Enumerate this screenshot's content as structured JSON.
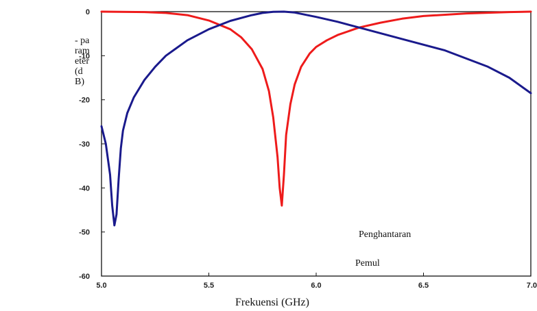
{
  "chart_data": {
    "type": "line",
    "xlabel": "Frekuensi (GHz)",
    "ylabel": "-\nparameter(dB)",
    "xlim": [
      5.0,
      7.0
    ],
    "ylim": [
      -60,
      0
    ],
    "x_ticks": [
      "5.0",
      "5.5",
      "6.0",
      "6.5",
      "7.0"
    ],
    "y_ticks": [
      "0",
      "-10",
      "-20",
      "-30",
      "-40",
      "-50",
      "-60"
    ],
    "grid": false,
    "legend_partial": [
      "Penghantaran",
      "Pemul"
    ],
    "series": [
      {
        "color": "#ee1b1b",
        "x": [
          5.0,
          5.2,
          5.3,
          5.4,
          5.5,
          5.6,
          5.65,
          5.7,
          5.75,
          5.78,
          5.8,
          5.82,
          5.83,
          5.84,
          5.85,
          5.86,
          5.88,
          5.9,
          5.93,
          5.97,
          6.0,
          6.05,
          6.1,
          6.2,
          6.3,
          6.4,
          6.5,
          6.7,
          6.9,
          7.0
        ],
        "y": [
          0,
          -0.1,
          -0.3,
          -0.8,
          -2.0,
          -4.0,
          -5.8,
          -8.5,
          -13,
          -18,
          -24,
          -33,
          -40,
          -44,
          -37,
          -28,
          -21,
          -16.5,
          -12.5,
          -9.5,
          -8,
          -6.5,
          -5.3,
          -3.6,
          -2.5,
          -1.6,
          -1.0,
          -0.4,
          -0.1,
          0
        ]
      },
      {
        "color": "#1a1a8c",
        "x": [
          5.0,
          5.02,
          5.04,
          5.05,
          5.06,
          5.07,
          5.08,
          5.09,
          5.1,
          5.12,
          5.15,
          5.2,
          5.25,
          5.3,
          5.4,
          5.5,
          5.6,
          5.7,
          5.75,
          5.8,
          5.85,
          5.9,
          6.0,
          6.1,
          6.2,
          6.4,
          6.6,
          6.8,
          6.9,
          7.0
        ],
        "y": [
          -26,
          -30,
          -37,
          -44,
          -48.5,
          -46,
          -38,
          -31,
          -27,
          -23,
          -19.5,
          -15.5,
          -12.5,
          -10,
          -6.5,
          -4,
          -2.1,
          -0.8,
          -0.3,
          -0.05,
          0,
          -0.2,
          -1.2,
          -2.3,
          -3.6,
          -6.2,
          -8.8,
          -12.5,
          -15,
          -18.5
        ]
      }
    ]
  }
}
